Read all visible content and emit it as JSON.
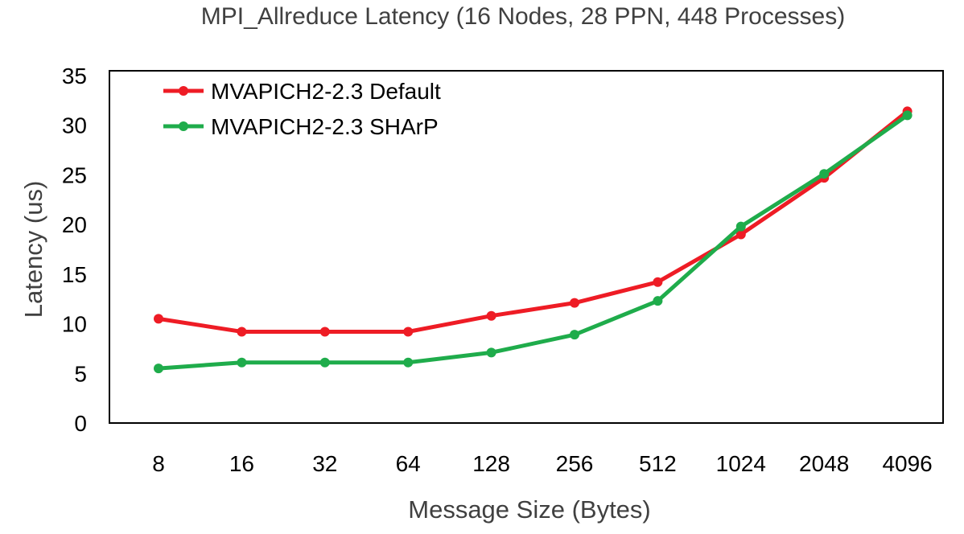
{
  "chart_data": {
    "type": "line",
    "title": "MPI_Allreduce Latency (16 Nodes, 28 PPN, 448 Processes)",
    "xlabel": "Message Size (Bytes)",
    "ylabel": "Latency (us)",
    "categories": [
      "8",
      "16",
      "32",
      "64",
      "128",
      "256",
      "512",
      "1024",
      "2048",
      "4096"
    ],
    "ylim": [
      0,
      35
    ],
    "yticks": [
      "0",
      "5",
      "10",
      "15",
      "20",
      "25",
      "30",
      "35"
    ],
    "grid": false,
    "legend_position": "top-left",
    "series": [
      {
        "name": "MVAPICH2-2.3 Default",
        "color": "#ee1c25",
        "values": [
          10.5,
          9.2,
          9.2,
          9.2,
          10.8,
          12.1,
          14.2,
          19.0,
          24.7,
          31.4
        ]
      },
      {
        "name": "MVAPICH2-2.3 SHArP",
        "color": "#1fac4b",
        "values": [
          5.5,
          6.1,
          6.1,
          6.1,
          7.1,
          8.9,
          12.3,
          19.8,
          25.1,
          31.0
        ]
      }
    ]
  }
}
